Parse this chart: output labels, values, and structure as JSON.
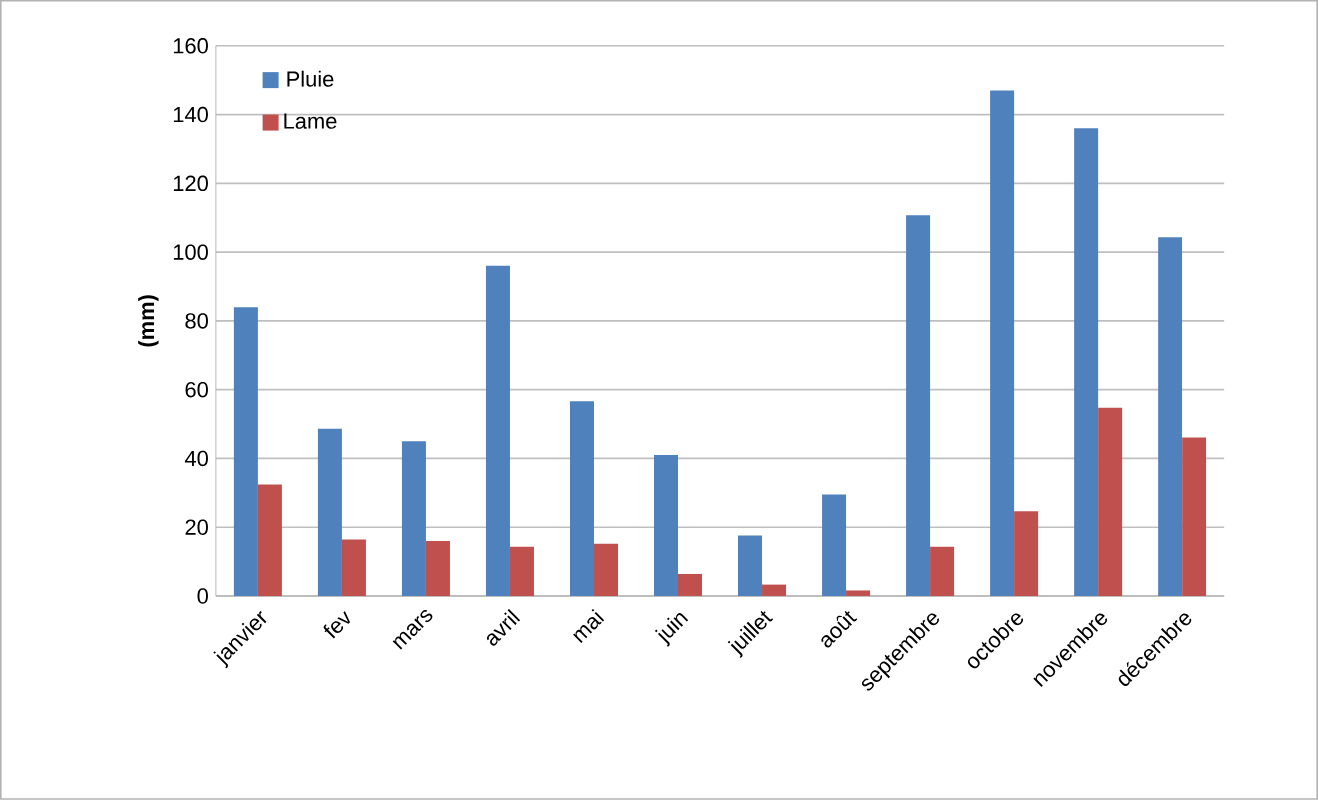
{
  "chart_data": {
    "type": "bar",
    "ylabel": "(mm)",
    "categories": [
      "janvier",
      "fev",
      "mars",
      "avril",
      "mai",
      "juin",
      "juillet",
      "août",
      "septembre",
      "octobre",
      "novembre",
      "décembre"
    ],
    "series": [
      {
        "name": "Pluie",
        "color": "#4f81bd",
        "values": [
          84,
          48.6,
          45,
          96,
          56.6,
          41,
          17.6,
          29.5,
          110.7,
          147,
          136,
          104.3
        ]
      },
      {
        "name": "Lame",
        "color": "#c0504d",
        "values": [
          32.4,
          16.4,
          16,
          14.3,
          15.2,
          6.4,
          3.3,
          1.6,
          14.3,
          24.6,
          54.7,
          46.1
        ]
      }
    ],
    "ylim": [
      0,
      160
    ],
    "yticks": [
      0,
      20,
      40,
      60,
      80,
      100,
      120,
      140,
      160
    ],
    "grid": "y",
    "legend": "top left"
  }
}
